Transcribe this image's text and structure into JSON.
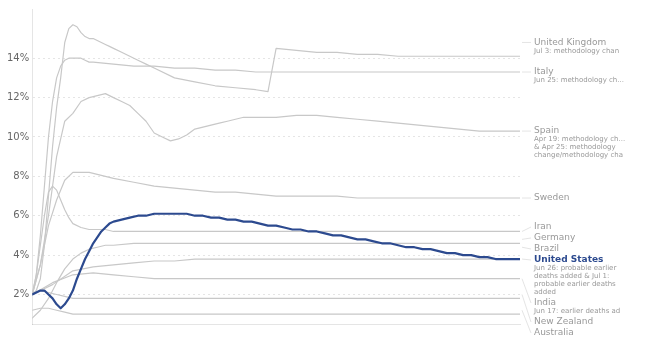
{
  "chart_data": {
    "type": "line",
    "xlim": [
      0,
      120
    ],
    "ylim": [
      0.005,
      0.165
    ],
    "yticks": [
      {
        "value": 0.02,
        "label": "2%"
      },
      {
        "value": 0.04,
        "label": "4%"
      },
      {
        "value": 0.06,
        "label": "6%"
      },
      {
        "value": 0.08,
        "label": "8%"
      },
      {
        "value": 0.1,
        "label": "10%"
      },
      {
        "value": 0.12,
        "label": "12%"
      },
      {
        "value": 0.14,
        "label": "14%"
      }
    ],
    "grid": true,
    "tick_labels": "y",
    "series": [
      {
        "name": "United Kingdom",
        "color": "#c8c8c8",
        "x": [
          0,
          1,
          2,
          3,
          4,
          5,
          6,
          7,
          8,
          9,
          10,
          11,
          12,
          13,
          14,
          15,
          16,
          17,
          18,
          19,
          20,
          22,
          24,
          26,
          28,
          30,
          35,
          40,
          45,
          50,
          55,
          58,
          60,
          65,
          70,
          75,
          80,
          85,
          90,
          95,
          100,
          105,
          110,
          115,
          120
        ],
        "values": [
          0.02,
          0.022,
          0.028,
          0.045,
          0.07,
          0.095,
          0.115,
          0.13,
          0.148,
          0.155,
          0.157,
          0.156,
          0.153,
          0.151,
          0.15,
          0.15,
          0.149,
          0.148,
          0.147,
          0.146,
          0.145,
          0.143,
          0.141,
          0.139,
          0.137,
          0.135,
          0.13,
          0.128,
          0.126,
          0.125,
          0.124,
          0.123,
          0.145,
          0.144,
          0.143,
          0.143,
          0.142,
          0.142,
          0.141,
          0.141,
          0.141,
          0.141,
          0.141,
          0.141,
          0.141
        ]
      },
      {
        "name": "Italy",
        "color": "#c8c8c8",
        "x": [
          0,
          1,
          2,
          3,
          4,
          5,
          6,
          7,
          8,
          9,
          10,
          11,
          12,
          13,
          14,
          15,
          20,
          25,
          30,
          35,
          40,
          45,
          50,
          55,
          60,
          65,
          70,
          75,
          80,
          85,
          90,
          95,
          100,
          105,
          110,
          115,
          120
        ],
        "values": [
          0.02,
          0.03,
          0.05,
          0.075,
          0.1,
          0.118,
          0.13,
          0.136,
          0.139,
          0.14,
          0.14,
          0.14,
          0.14,
          0.139,
          0.138,
          0.138,
          0.137,
          0.136,
          0.136,
          0.135,
          0.135,
          0.134,
          0.134,
          0.133,
          0.133,
          0.133,
          0.133,
          0.133,
          0.133,
          0.133,
          0.133,
          0.133,
          0.133,
          0.133,
          0.133,
          0.133,
          0.133
        ]
      },
      {
        "name": "Spain",
        "color": "#c8c8c8",
        "x": [
          0,
          2,
          4,
          6,
          8,
          10,
          12,
          14,
          16,
          18,
          20,
          22,
          24,
          26,
          28,
          30,
          32,
          34,
          36,
          38,
          40,
          42,
          44,
          46,
          48,
          50,
          52,
          54,
          56,
          58,
          60,
          65,
          70,
          75,
          80,
          85,
          90,
          95,
          100,
          105,
          110,
          115,
          120
        ],
        "values": [
          0.02,
          0.035,
          0.06,
          0.09,
          0.108,
          0.112,
          0.118,
          0.12,
          0.121,
          0.122,
          0.12,
          0.118,
          0.116,
          0.112,
          0.108,
          0.102,
          0.1,
          0.098,
          0.099,
          0.101,
          0.104,
          0.105,
          0.106,
          0.107,
          0.108,
          0.109,
          0.11,
          0.11,
          0.11,
          0.11,
          0.11,
          0.111,
          0.111,
          0.11,
          0.109,
          0.108,
          0.107,
          0.106,
          0.105,
          0.104,
          0.103,
          0.103,
          0.103
        ]
      },
      {
        "name": "Sweden",
        "color": "#c8c8c8",
        "x": [
          0,
          2,
          4,
          6,
          8,
          10,
          12,
          14,
          16,
          18,
          20,
          25,
          30,
          35,
          40,
          45,
          50,
          55,
          60,
          65,
          70,
          75,
          80,
          85,
          90,
          95,
          100,
          105,
          110,
          115,
          120
        ],
        "values": [
          0.02,
          0.035,
          0.055,
          0.068,
          0.078,
          0.082,
          0.082,
          0.082,
          0.081,
          0.08,
          0.079,
          0.077,
          0.075,
          0.074,
          0.073,
          0.072,
          0.072,
          0.071,
          0.07,
          0.07,
          0.07,
          0.07,
          0.069,
          0.069,
          0.069,
          0.069,
          0.069,
          0.069,
          0.069,
          0.069,
          0.069
        ]
      },
      {
        "name": "Iran",
        "color": "#c8c8c8",
        "x": [
          0,
          1,
          2,
          3,
          4,
          5,
          6,
          7,
          8,
          9,
          10,
          12,
          14,
          16,
          18,
          20,
          25,
          30,
          35,
          40,
          45,
          50,
          55,
          60,
          65,
          70,
          75,
          80,
          85,
          90,
          95,
          100,
          105,
          110,
          115,
          120
        ],
        "values": [
          0.02,
          0.03,
          0.045,
          0.06,
          0.072,
          0.075,
          0.073,
          0.068,
          0.063,
          0.059,
          0.056,
          0.054,
          0.053,
          0.053,
          0.053,
          0.052,
          0.052,
          0.052,
          0.052,
          0.052,
          0.052,
          0.052,
          0.052,
          0.052,
          0.052,
          0.052,
          0.052,
          0.052,
          0.052,
          0.052,
          0.052,
          0.052,
          0.052,
          0.052,
          0.052,
          0.052
        ]
      },
      {
        "name": "Germany",
        "color": "#c8c8c8",
        "x": [
          0,
          2,
          4,
          6,
          8,
          10,
          12,
          14,
          16,
          18,
          20,
          25,
          30,
          35,
          40,
          45,
          50,
          55,
          60,
          65,
          70,
          75,
          80,
          85,
          90,
          95,
          100,
          105,
          110,
          115,
          120
        ],
        "values": [
          0.008,
          0.012,
          0.018,
          0.026,
          0.033,
          0.038,
          0.041,
          0.043,
          0.044,
          0.045,
          0.045,
          0.046,
          0.046,
          0.046,
          0.046,
          0.046,
          0.046,
          0.046,
          0.046,
          0.046,
          0.046,
          0.046,
          0.046,
          0.046,
          0.046,
          0.046,
          0.046,
          0.046,
          0.046,
          0.046,
          0.046
        ]
      },
      {
        "name": "Brazil",
        "color": "#c8c8c8",
        "x": [
          0,
          5,
          10,
          15,
          20,
          25,
          30,
          35,
          40,
          45,
          50,
          55,
          60,
          65,
          70,
          75,
          80,
          85,
          90,
          95,
          100,
          105,
          110,
          115,
          120
        ],
        "values": [
          0.02,
          0.025,
          0.032,
          0.034,
          0.035,
          0.036,
          0.037,
          0.037,
          0.038,
          0.038,
          0.038,
          0.038,
          0.038,
          0.038,
          0.038,
          0.038,
          0.038,
          0.038,
          0.038,
          0.038,
          0.038,
          0.038,
          0.038,
          0.038,
          0.038
        ]
      },
      {
        "name": "United States",
        "color": "#2c4a8f",
        "x": [
          0,
          1,
          2,
          3,
          4,
          5,
          6,
          7,
          8,
          9,
          10,
          11,
          12,
          13,
          14,
          15,
          16,
          17,
          18,
          19,
          20,
          22,
          24,
          26,
          28,
          30,
          32,
          34,
          36,
          38,
          40,
          42,
          44,
          46,
          48,
          50,
          52,
          54,
          56,
          58,
          60,
          62,
          64,
          66,
          68,
          70,
          72,
          74,
          76,
          78,
          80,
          82,
          84,
          86,
          88,
          90,
          92,
          94,
          96,
          98,
          100,
          102,
          104,
          106,
          108,
          110,
          112,
          114,
          116,
          118,
          120
        ],
        "values": [
          0.02,
          0.021,
          0.022,
          0.022,
          0.02,
          0.018,
          0.015,
          0.013,
          0.015,
          0.018,
          0.022,
          0.028,
          0.033,
          0.038,
          0.042,
          0.046,
          0.049,
          0.052,
          0.054,
          0.056,
          0.057,
          0.058,
          0.059,
          0.06,
          0.06,
          0.061,
          0.061,
          0.061,
          0.061,
          0.061,
          0.06,
          0.06,
          0.059,
          0.059,
          0.058,
          0.058,
          0.057,
          0.057,
          0.056,
          0.055,
          0.055,
          0.054,
          0.053,
          0.053,
          0.052,
          0.052,
          0.051,
          0.05,
          0.05,
          0.049,
          0.048,
          0.048,
          0.047,
          0.046,
          0.046,
          0.045,
          0.044,
          0.044,
          0.043,
          0.043,
          0.042,
          0.041,
          0.041,
          0.04,
          0.04,
          0.039,
          0.039,
          0.038,
          0.038,
          0.038,
          0.038
        ]
      },
      {
        "name": "India",
        "color": "#c8c8c8",
        "x": [
          0,
          5,
          10,
          15,
          20,
          25,
          30,
          35,
          40,
          45,
          50,
          55,
          60,
          65,
          70,
          75,
          80,
          85,
          90,
          95,
          100,
          105,
          110,
          115,
          120
        ],
        "values": [
          0.02,
          0.026,
          0.03,
          0.031,
          0.03,
          0.029,
          0.028,
          0.028,
          0.028,
          0.028,
          0.028,
          0.028,
          0.028,
          0.028,
          0.028,
          0.028,
          0.028,
          0.028,
          0.028,
          0.028,
          0.028,
          0.028,
          0.028,
          0.028,
          0.028
        ]
      },
      {
        "name": "New Zealand",
        "color": "#c8c8c8",
        "x": [
          0,
          2,
          4,
          6,
          8,
          10,
          15,
          20,
          25,
          30,
          35,
          40,
          45,
          50,
          55,
          60,
          65,
          70,
          75,
          80,
          85,
          90,
          95,
          100,
          105,
          110,
          115,
          120
        ],
        "values": [
          0.02,
          0.022,
          0.021,
          0.02,
          0.019,
          0.018,
          0.018,
          0.018,
          0.018,
          0.018,
          0.018,
          0.018,
          0.018,
          0.018,
          0.018,
          0.018,
          0.018,
          0.018,
          0.018,
          0.018,
          0.018,
          0.018,
          0.018,
          0.018,
          0.018,
          0.018,
          0.018,
          0.018
        ]
      },
      {
        "name": "Australia",
        "color": "#c8c8c8",
        "x": [
          0,
          2,
          4,
          6,
          8,
          10,
          15,
          20,
          25,
          30,
          35,
          40,
          45,
          50,
          55,
          60,
          65,
          70,
          75,
          80,
          85,
          90,
          95,
          100,
          105,
          110,
          115,
          120
        ],
        "values": [
          0.012,
          0.013,
          0.013,
          0.012,
          0.011,
          0.01,
          0.01,
          0.01,
          0.01,
          0.01,
          0.01,
          0.01,
          0.01,
          0.01,
          0.01,
          0.01,
          0.01,
          0.01,
          0.01,
          0.01,
          0.01,
          0.01,
          0.01,
          0.01,
          0.01,
          0.01,
          0.01,
          0.01
        ]
      }
    ],
    "annotations": [
      {
        "text": "United Kingdom",
        "subtext": "Jul 3: methodology chan",
        "y": 0.148
      },
      {
        "text": "Italy",
        "subtext": "Jun 25: methodology ch...",
        "y": 0.133
      },
      {
        "text": "Spain",
        "subtext": "Apr 19: methodology ch...\n& Apr 25: methodology\nchange/methodology cha",
        "y": 0.103
      },
      {
        "text": "Sweden",
        "y": 0.069
      },
      {
        "text": "Iran",
        "y": 0.052
      },
      {
        "text": "Germany",
        "y": 0.048
      },
      {
        "text": "Brazil",
        "y": 0.044
      },
      {
        "text": "United States",
        "subtext": "Jun 26: probable earlier\ndeaths added & Jul 1:\nprobable earlier deaths\nadded",
        "y": 0.038
      },
      {
        "text": "India",
        "subtext": "Jun 17: earlier deaths ad",
        "y": 0.028
      },
      {
        "text": "New Zealand",
        "y": 0.02
      },
      {
        "text": "Australia",
        "y": 0.012
      }
    ]
  }
}
